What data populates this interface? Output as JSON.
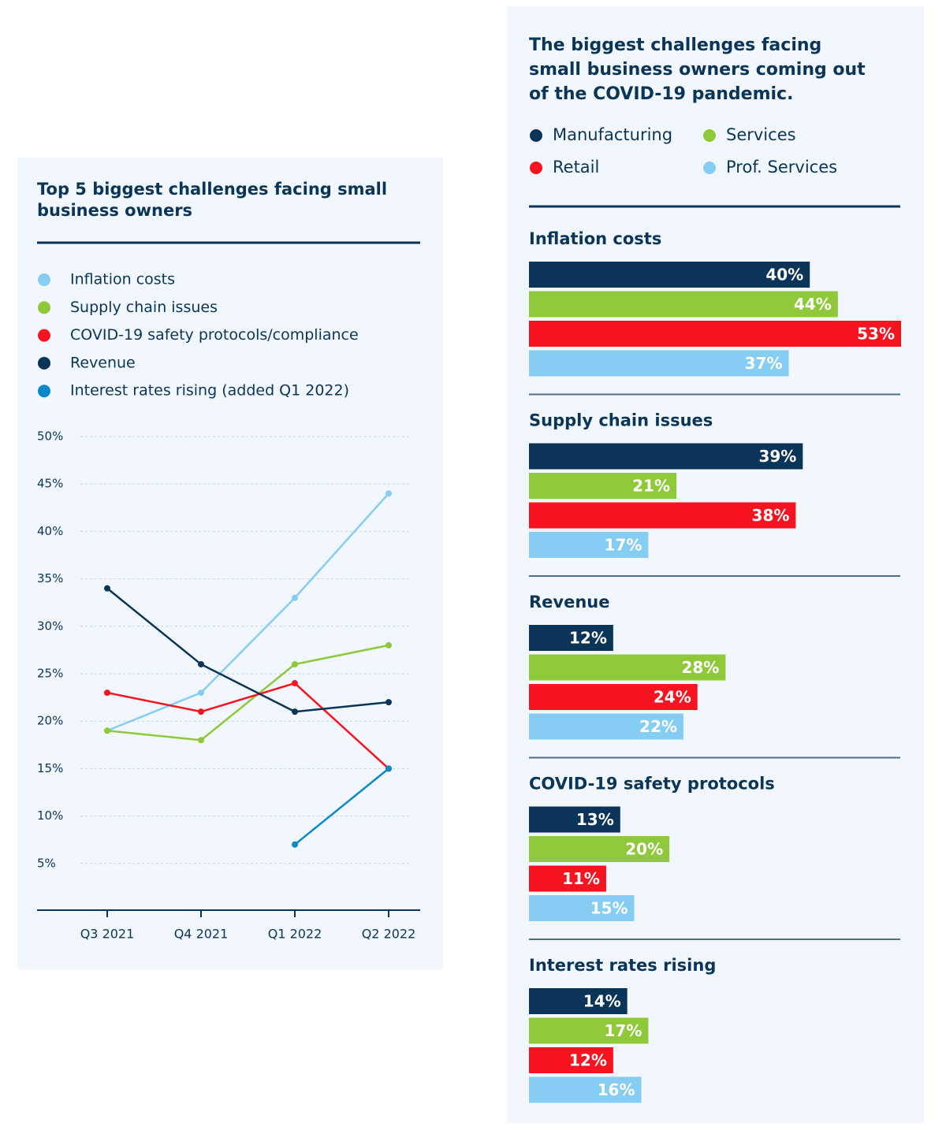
{
  "chart_data": [
    {
      "type": "line",
      "title": "Top 5 biggest challenges facing small business owners",
      "categories": [
        "Q3 2021",
        "Q4 2021",
        "Q1 2022",
        "Q2 2022"
      ],
      "series": [
        {
          "name": "Inflation costs",
          "color": "#85cdf3",
          "values": [
            19,
            23,
            33,
            44
          ]
        },
        {
          "name": "Supply chain issues",
          "color": "#8fc93a",
          "values": [
            19,
            18,
            26,
            28
          ]
        },
        {
          "name": "COVID-19 safety protocols/compliance",
          "color": "#f5141f",
          "values": [
            23,
            21,
            24,
            15
          ]
        },
        {
          "name": "Revenue",
          "color": "#0b3558",
          "values": [
            34,
            26,
            21,
            22
          ]
        },
        {
          "name": "Interest rates rising (added Q1 2022)",
          "color": "#0a88c9",
          "values": [
            null,
            null,
            7,
            15
          ]
        }
      ],
      "ylim": [
        0,
        50
      ],
      "yticks": [
        {
          "value": 5,
          "label": "5%"
        },
        {
          "value": 10,
          "label": "10%"
        },
        {
          "value": 15,
          "label": "15%"
        },
        {
          "value": 20,
          "label": "20%"
        },
        {
          "value": 25,
          "label": "25%"
        },
        {
          "value": 30,
          "label": "30%"
        },
        {
          "value": 35,
          "label": "35%"
        },
        {
          "value": 40,
          "label": "40%"
        },
        {
          "value": 45,
          "label": "45%"
        },
        {
          "value": 50,
          "label": "50%"
        }
      ],
      "grid": true
    },
    {
      "type": "bar",
      "title": "The biggest challenges facing small business owners coming out of the COVID-19 pandemic.",
      "categories": [
        "Inflation costs",
        "Supply chain issues",
        "Revenue",
        "COVID-19 safety protocols",
        "Interest rates rising"
      ],
      "series": [
        {
          "name": "Manufacturing",
          "color": "#0b3558",
          "values": [
            40,
            39,
            12,
            13,
            14
          ],
          "value_labels": [
            "40%",
            "39%",
            "12%",
            "13%",
            "14%"
          ]
        },
        {
          "name": "Services",
          "color": "#8fc93a",
          "values": [
            44,
            21,
            28,
            20,
            17
          ],
          "value_labels": [
            "44%",
            "21%",
            "28%",
            "20%",
            "17%"
          ]
        },
        {
          "name": "Retail",
          "color": "#f5141f",
          "values": [
            53,
            38,
            24,
            11,
            12
          ],
          "value_labels": [
            "53%",
            "38%",
            "24%",
            "11%",
            "12%"
          ]
        },
        {
          "name": "Prof. Services",
          "color": "#85cdf3",
          "values": [
            37,
            17,
            22,
            15,
            16
          ],
          "value_labels": [
            "37%",
            "17%",
            "22%",
            "15%",
            "16%"
          ]
        }
      ]
    }
  ]
}
